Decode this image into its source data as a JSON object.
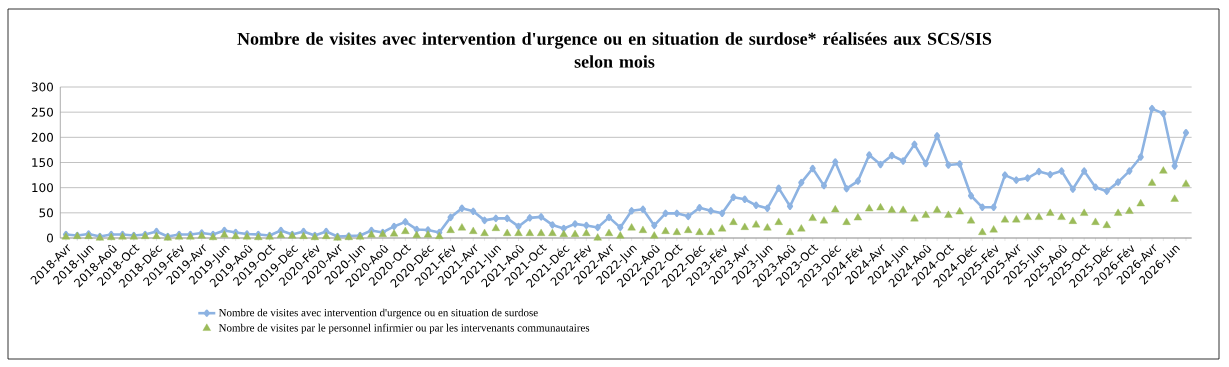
{
  "chart_data": {
    "type": "line",
    "title": "Nombre de visites avec intervention d'urgence ou en situation de surdose* réalisées aux SCS/SIS\nselon mois",
    "categories": [
      "2018-Avr",
      null,
      "2018-Jun",
      null,
      "2018-Aoû",
      null,
      "2018-Oct",
      null,
      "2018-Déc",
      null,
      "2019-Fév",
      null,
      "2019-Avr",
      null,
      "2019-Jun",
      null,
      "2019-Aoû",
      null,
      "2019-Oct",
      null,
      "2019-Déc",
      null,
      "2020-Fév",
      null,
      "2020-Avr",
      null,
      "2020-Jun",
      null,
      "2020-Aoû",
      null,
      "2020-Oct",
      null,
      "2020-Déc",
      null,
      "2021-Fév",
      null,
      "2021-Avr",
      null,
      "2021-Jun",
      null,
      "2021-Aoû",
      null,
      "2021-Oct",
      null,
      "2021-Déc",
      null,
      "2022-Fév",
      null,
      "2022-Avr",
      null,
      "2022-Jun",
      null,
      "2022-Aoû",
      null,
      "2022-Oct",
      null,
      "2022-Déc",
      null,
      "2023-Fév",
      null,
      "2023-Avr",
      null,
      "2023-Jun",
      null,
      "2023-Aoû",
      null,
      "2023-Oct",
      null,
      "2023-Déc",
      null,
      "2024-Fév",
      null,
      "2024-Avr",
      null,
      "2024-Jun",
      null,
      "2024-Aoû",
      null,
      "2024-Oct",
      null,
      "2024-Déc",
      null,
      "2025-Fév",
      null,
      "2025-Avr",
      null,
      "2025-Jun",
      null,
      "2025-Aoû",
      null,
      "2025-Oct",
      null,
      "2025-Déc",
      null,
      "2026-Fév",
      null,
      "2026-Avr",
      null,
      "2026-Jun",
      null
    ],
    "series": [
      {
        "name": "Nombre de visites avec intervention d'urgence ou en situation de surdose",
        "marker": "diamond",
        "color": "#8db3e2",
        "values": [
          7,
          5,
          8,
          3,
          7,
          7,
          5,
          7,
          13,
          3,
          7,
          7,
          10,
          7,
          15,
          11,
          8,
          7,
          5,
          15,
          7,
          13,
          5,
          13,
          3,
          4,
          5,
          15,
          11,
          23,
          32,
          17,
          16,
          11,
          41,
          59,
          53,
          35,
          39,
          39,
          23,
          40,
          42,
          26,
          19,
          28,
          25,
          21,
          41,
          21,
          54,
          57,
          25,
          49,
          49,
          43,
          60,
          54,
          49,
          81,
          77,
          65,
          59,
          99,
          63,
          110,
          138,
          104,
          151,
          98,
          113,
          165,
          146,
          164,
          153,
          186,
          148,
          203,
          145,
          147,
          84,
          61,
          61,
          125,
          115,
          119,
          132,
          126,
          133,
          97,
          133,
          101,
          93,
          111,
          133,
          161,
          257,
          247,
          143,
          209
        ]
      },
      {
        "name": "Nombre de visites par le personnel infirmier ou par les intervenants communautaires",
        "type": "scatter",
        "marker": "triangle",
        "color": "#9bbb59",
        "values": [
          2,
          3,
          3,
          0,
          1,
          2,
          2,
          3,
          3,
          0,
          2,
          2,
          4,
          1,
          6,
          3,
          2,
          1,
          2,
          5,
          4,
          3,
          1,
          3,
          0,
          1,
          2,
          6,
          7,
          8,
          13,
          5,
          6,
          3,
          15,
          20,
          13,
          9,
          19,
          9,
          9,
          9,
          9,
          9,
          7,
          7,
          9,
          0,
          9,
          4,
          20,
          15,
          4,
          13,
          11,
          15,
          11,
          11,
          18,
          31,
          21,
          26,
          20,
          31,
          11,
          18,
          39,
          34,
          56,
          31,
          40,
          58,
          60,
          55,
          55,
          38,
          45,
          55,
          45,
          52,
          34,
          11,
          16,
          36,
          36,
          41,
          41,
          49,
          41,
          33,
          49,
          31,
          25,
          49,
          53,
          68,
          109,
          133,
          77,
          107
        ]
      }
    ],
    "ylim": [
      0,
      300
    ],
    "yticks": [
      0,
      50,
      100,
      150,
      200,
      250,
      300
    ],
    "grid": "y",
    "legend": "bottom"
  }
}
